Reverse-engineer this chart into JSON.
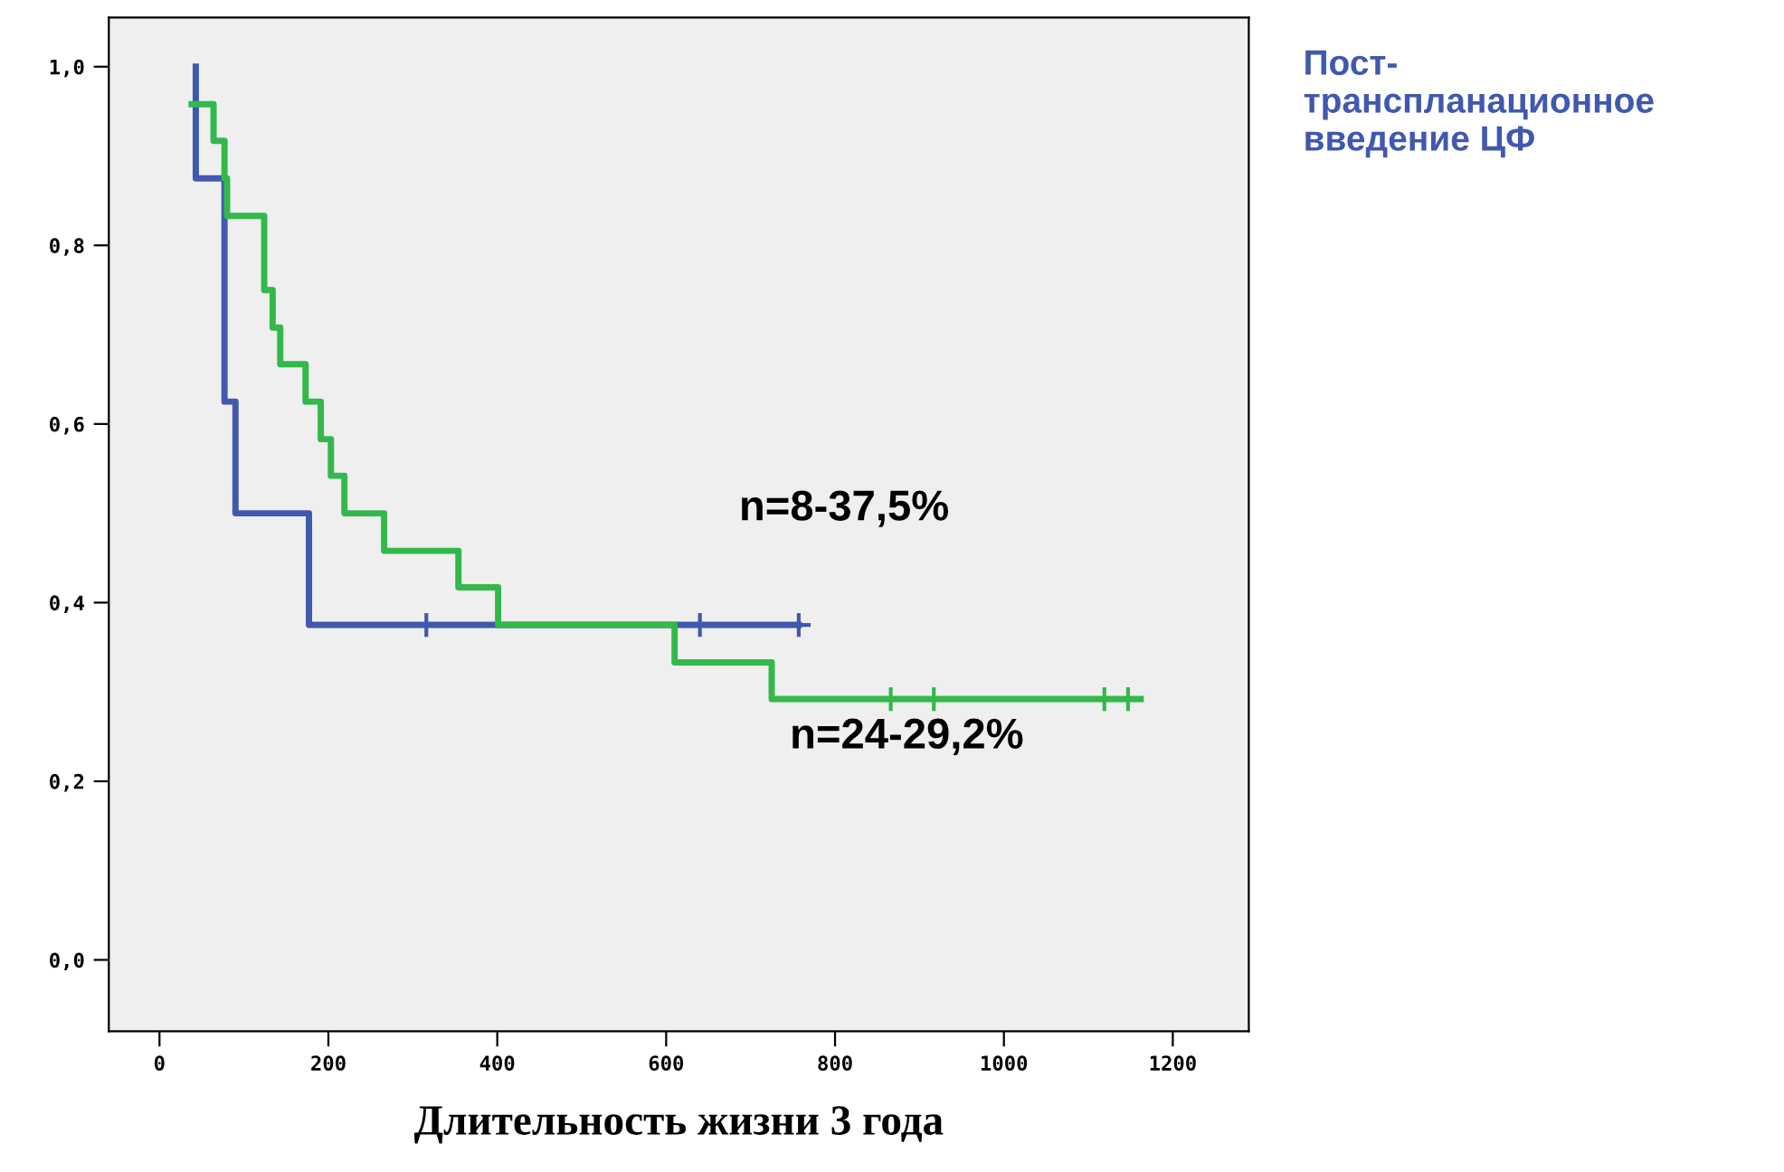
{
  "chart_data": {
    "type": "step",
    "xlabel": "Длительность жизни 3 года",
    "series": [
      {
        "name": "Пост-\nтранспланационное\nвведение ЦФ",
        "color": "#4058b0",
        "x": [
          43,
          43,
          77,
          90,
          177,
          757
        ],
        "values": [
          1.0,
          0.875,
          0.625,
          0.5,
          0.375,
          0.375
        ]
      },
      {
        "color": "#33b84a",
        "x": [
          38,
          64,
          77,
          80,
          124,
          134,
          143,
          173,
          191,
          203,
          219,
          266,
          354,
          401,
          610,
          725,
          1162
        ],
        "values": [
          0.958,
          0.917,
          0.875,
          0.833,
          0.75,
          0.708,
          0.667,
          0.625,
          0.583,
          0.542,
          0.5,
          0.458,
          0.417,
          0.375,
          0.333,
          0.292,
          0.292
        ]
      },
      {
        "type": "scatter",
        "marker": "cross",
        "color": "#4058b0",
        "x": [
          316,
          640,
          757
        ],
        "values": [
          0.375,
          0.375,
          0.375
        ]
      },
      {
        "type": "scatter",
        "marker": "cross",
        "color": "#33b84a",
        "x": [
          866,
          917,
          1119,
          1147
        ],
        "values": [
          0.292,
          0.292,
          0.292,
          0.292
        ]
      }
    ],
    "annotations": [
      "n=8-37,5%",
      "n=24-29,2%"
    ],
    "xlim": [
      -60,
      1290
    ],
    "ylim": [
      -0.08,
      1.055
    ],
    "xticks": [
      0,
      200,
      400,
      600,
      800,
      1000,
      1200
    ],
    "yticks": [
      {
        "value": 0.0,
        "label": "0,0"
      },
      {
        "value": 0.2,
        "label": "0,2"
      },
      {
        "value": 0.4,
        "label": "0,4"
      },
      {
        "value": 0.6,
        "label": "0,6"
      },
      {
        "value": 0.8,
        "label": "0,8"
      },
      {
        "value": 1.0,
        "label": "1,0"
      }
    ],
    "grid": false,
    "legend": "right"
  }
}
